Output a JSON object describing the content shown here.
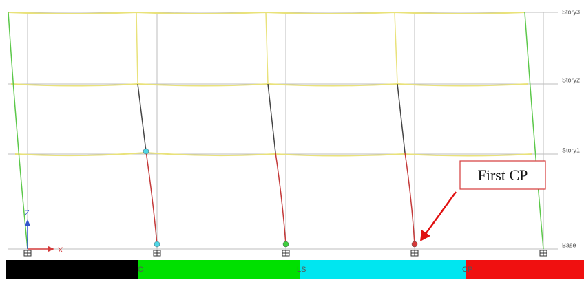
{
  "story_levels": [
    "Story3",
    "Story2",
    "Story1",
    "Base"
  ],
  "axes": {
    "z": "Z",
    "x": "X"
  },
  "legend": [
    "O",
    "LS",
    "CP"
  ],
  "annotation": "First CP"
}
